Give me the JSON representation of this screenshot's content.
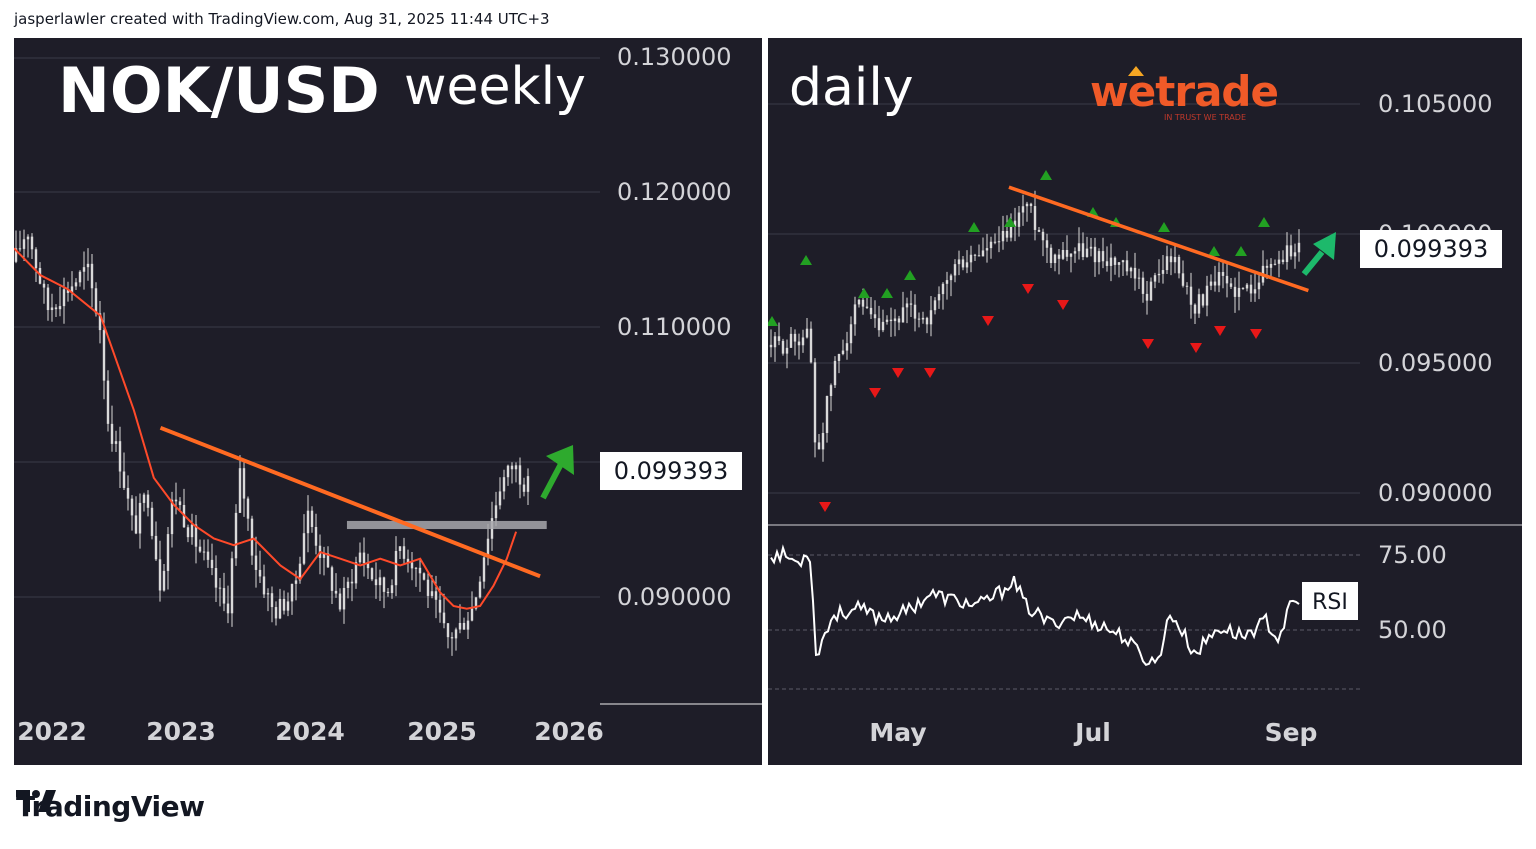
{
  "header": {
    "caption": "jasperlawler created with TradingView.com, Aug 31, 2025 11:44 UTC+3"
  },
  "footer": {
    "brand": "TradingView"
  },
  "colors": {
    "panel_bg": "#1e1d28",
    "candle": "#d9d9d9",
    "trendline": "#ff6a22",
    "moving_average": "#ff4a2a",
    "support_zone": "#a8a8ad",
    "arrow_green": "#2eaa2e",
    "arrow_daily": "#1db96b",
    "marker_up": "#22a022",
    "marker_down": "#e81818",
    "rsi_line": "#ffffff"
  },
  "chart_data": [
    {
      "type": "candlestick",
      "symbol": "NOK/USD",
      "timeframe": "weekly",
      "x_ticks": [
        "2022",
        "2023",
        "2024",
        "2025",
        "2026"
      ],
      "y_ticks": [
        "0.130000",
        "0.120000",
        "0.110000",
        "0.090000"
      ],
      "ylim": [
        0.0822,
        0.1311
      ],
      "last_price": "0.099393",
      "grid": true,
      "series": [
        {
          "kind": "close",
          "x": [
            2021.8,
            2021.9,
            2022.05,
            2022.2,
            2022.35,
            2022.45,
            2022.5,
            2022.6,
            2022.7,
            2022.8,
            2022.9,
            2023.0,
            2023.1,
            2023.25,
            2023.4,
            2023.5,
            2023.6,
            2023.75,
            2023.9,
            2024.0,
            2024.1,
            2024.25,
            2024.4,
            2024.5,
            2024.6,
            2024.7,
            2024.85,
            2025.0,
            2025.05,
            2025.15,
            2025.25,
            2025.35,
            2025.45,
            2025.55,
            2025.65
          ],
          "values": [
            0.116,
            0.1185,
            0.1125,
            0.114,
            0.1155,
            0.111,
            0.1045,
            0.101,
            0.096,
            0.099,
            0.092,
            0.099,
            0.0965,
            0.0935,
            0.09,
            0.1005,
            0.094,
            0.09,
            0.0915,
            0.0975,
            0.0945,
            0.0905,
            0.0945,
            0.0925,
            0.0915,
            0.095,
            0.093,
            0.0895,
            0.088,
            0.089,
            0.0905,
            0.0955,
            0.0995,
            0.101,
            0.0994
          ]
        },
        {
          "kind": "moving_average",
          "x": [
            2021.8,
            2022.0,
            2022.2,
            2022.45,
            2022.7,
            2022.85,
            2023.0,
            2023.15,
            2023.3,
            2023.45,
            2023.6,
            2023.8,
            2023.95,
            2024.1,
            2024.25,
            2024.4,
            2024.55,
            2024.7,
            2024.85,
            2025.0,
            2025.1,
            2025.2,
            2025.3,
            2025.4,
            2025.5,
            2025.57
          ],
          "values": [
            0.117,
            0.115,
            0.114,
            0.112,
            0.105,
            0.1,
            0.098,
            0.0965,
            0.0955,
            0.095,
            0.0955,
            0.0935,
            0.0925,
            0.0945,
            0.094,
            0.0935,
            0.094,
            0.0935,
            0.094,
            0.0915,
            0.0905,
            0.0903,
            0.0905,
            0.092,
            0.094,
            0.096
          ]
        },
        {
          "kind": "trendline",
          "x": [
            2022.9,
            2025.75
          ],
          "values": [
            0.1037,
            0.0927
          ]
        },
        {
          "kind": "support_zone",
          "x": [
            2024.3,
            2025.8
          ],
          "values": [
            0.0962,
            0.0968
          ]
        }
      ],
      "annotations": [
        {
          "kind": "up-arrow",
          "x": 2025.9
        }
      ]
    },
    {
      "type": "candlestick",
      "timeframe": "daily",
      "x_ticks": [
        "May",
        "Jul",
        "Sep"
      ],
      "y_ticks": [
        "0.105000",
        "0.100000",
        "0.095000",
        "0.090000"
      ],
      "ylim": [
        0.0888,
        0.1066
      ],
      "last_price": "0.099393",
      "grid": true,
      "series": [
        {
          "kind": "close",
          "x": [
            "2025-04-01",
            "2025-04-08",
            "2025-04-10",
            "2025-04-15",
            "2025-04-22",
            "2025-04-29",
            "2025-05-06",
            "2025-05-13",
            "2025-05-20",
            "2025-05-27",
            "2025-06-03",
            "2025-06-10",
            "2025-06-17",
            "2025-06-24",
            "2025-07-01",
            "2025-07-08",
            "2025-07-15",
            "2025-07-22",
            "2025-07-29",
            "2025-08-05",
            "2025-08-12",
            "2025-08-19",
            "2025-08-26",
            "2025-08-29"
          ],
          "values": [
            0.0955,
            0.096,
            0.091,
            0.0945,
            0.097,
            0.096,
            0.0968,
            0.0965,
            0.0985,
            0.099,
            0.0995,
            0.101,
            0.099,
            0.0992,
            0.099,
            0.0985,
            0.0975,
            0.099,
            0.097,
            0.098,
            0.0975,
            0.0985,
            0.0992,
            0.0994
          ]
        },
        {
          "kind": "trendline",
          "x": [
            "2025-06-05",
            "2025-08-31"
          ],
          "values": [
            0.1016,
            0.0976
          ]
        }
      ],
      "annotations": [
        {
          "kind": "up-arrow",
          "x": "2025-09-05"
        }
      ]
    },
    {
      "type": "line",
      "indicator": "RSI",
      "y_ticks": [
        "75.00",
        "50.00"
      ],
      "ylim": [
        25,
        85
      ],
      "series": [
        {
          "name": "RSI",
          "x": [
            "2025-04-01",
            "2025-04-05",
            "2025-04-08",
            "2025-04-10",
            "2025-04-15",
            "2025-04-22",
            "2025-04-29",
            "2025-05-06",
            "2025-05-13",
            "2025-05-20",
            "2025-05-27",
            "2025-06-03",
            "2025-06-06",
            "2025-06-10",
            "2025-06-17",
            "2025-06-24",
            "2025-07-01",
            "2025-07-08",
            "2025-07-15",
            "2025-07-18",
            "2025-07-22",
            "2025-07-29",
            "2025-08-05",
            "2025-08-12",
            "2025-08-19",
            "2025-08-22",
            "2025-08-26",
            "2025-08-29"
          ],
          "values": [
            75,
            72,
            78,
            42,
            55,
            57,
            54,
            56,
            62,
            60,
            58,
            63,
            67,
            58,
            52,
            55,
            52,
            48,
            40,
            39,
            56,
            42,
            51,
            48,
            53,
            47,
            58,
            60
          ]
        }
      ]
    }
  ],
  "weekly": {
    "pair_label": "NOK/USD",
    "timeframe_label": "weekly",
    "price_ticks": [
      "0.130000",
      "0.120000",
      "0.110000",
      "0.090000"
    ],
    "year_ticks": [
      "2022",
      "2023",
      "2024",
      "2025",
      "2026"
    ],
    "last_price": "0.099393"
  },
  "daily": {
    "timeframe_label": "daily",
    "logo_text": "wetrade",
    "logo_tagline": "IN TRUST WE TRADE",
    "price_ticks": [
      "0.105000",
      "0.100000",
      "0.095000",
      "0.090000"
    ],
    "month_ticks": [
      "May",
      "Jul",
      "Sep"
    ],
    "last_price": "0.099393",
    "rsi_ticks": [
      "75.00",
      "50.00"
    ],
    "rsi_label": "RSI"
  }
}
